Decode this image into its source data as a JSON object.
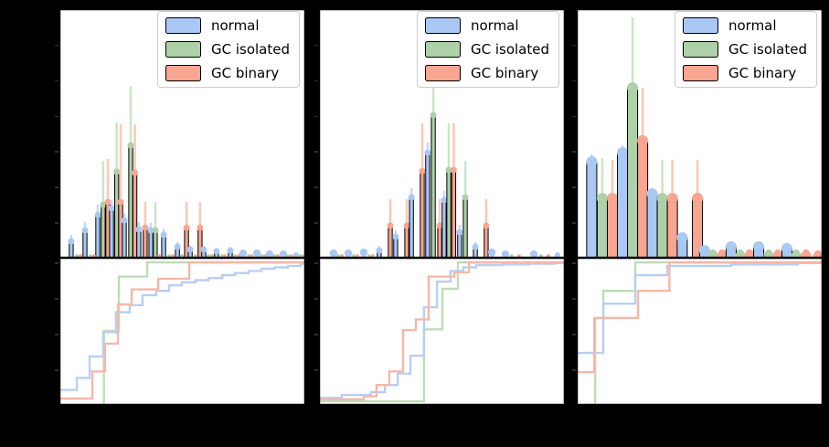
{
  "figure": {
    "background": "#000000",
    "panel_background": "#ffffff",
    "spine_color": "#000000",
    "tick_color": "#2e2e2e"
  },
  "legend": {
    "labels": [
      "normal",
      "GC isolated",
      "GC binary"
    ],
    "border_color": "#cccccc",
    "background": "#ffffff"
  },
  "series_colors": {
    "bar_fill": [
      "#aac8f4",
      "#aed1a9",
      "#f8a591"
    ],
    "error_bar": [
      "#c6daf8",
      "#cde6c9",
      "#fbc9ba"
    ],
    "cdf_line": [
      "#b7cff4",
      "#bedcb8",
      "#f8b7a6"
    ],
    "bar_edge": "#000000"
  },
  "chart_data": [
    {
      "id": "panel-left",
      "type": "bar",
      "description": "grouped histogram with error bars (top) and empirical CDF step curves (bottom); series order: normal, GC isolated, GC binary; all values are fractions of axis ranges (no tick labels visible in image)",
      "histogram": {
        "bar_width_frac": 0.016,
        "bar_format": [
          "series_index",
          "x_frac",
          "height_frac",
          "err_top_frac"
        ],
        "bars": [
          [
            0,
            0.048,
            0.066,
            0.088
          ],
          [
            0,
            0.104,
            0.11,
            0.14
          ],
          [
            0,
            0.156,
            0.173,
            0.21
          ],
          [
            1,
            0.178,
            0.213,
            0.386
          ],
          [
            2,
            0.197,
            0.224,
            0.393
          ],
          [
            0,
            0.212,
            0.199,
            0.228
          ],
          [
            1,
            0.233,
            0.346,
            0.54
          ],
          [
            2,
            0.249,
            0.224,
            0.533
          ],
          [
            0,
            0.264,
            0.15,
            0.176
          ],
          [
            1,
            0.29,
            0.452,
            0.688
          ],
          [
            2,
            0.307,
            0.342,
            0.533
          ],
          [
            0,
            0.323,
            0.114,
            0.14
          ],
          [
            2,
            0.349,
            0.121,
            0.221
          ],
          [
            0,
            0.372,
            0.11,
            0.136
          ],
          [
            1,
            0.39,
            0.11,
            0.221
          ],
          [
            0,
            0.424,
            0.092,
            0.114
          ],
          [
            0,
            0.48,
            0.044,
            0.059
          ],
          [
            2,
            0.517,
            0.121,
            0.221
          ],
          [
            0,
            0.532,
            0.033,
            0.044
          ],
          [
            2,
            0.572,
            0.121,
            0.221
          ],
          [
            0,
            0.587,
            0.033,
            0.044
          ],
          [
            0,
            0.639,
            0.026,
            0.033
          ],
          [
            0,
            0.695,
            0.029,
            0.04
          ],
          [
            0,
            0.747,
            0.018,
            0
          ],
          [
            0,
            0.803,
            0.018,
            0
          ],
          [
            0,
            0.855,
            0.015,
            0
          ],
          [
            0,
            0.911,
            0.015,
            0
          ],
          [
            0,
            0.963,
            0.011,
            0
          ],
          [
            1,
            0.071,
            0.007,
            0
          ],
          [
            1,
            0.126,
            0.007,
            0
          ],
          [
            1,
            0.446,
            0.007,
            0
          ],
          [
            1,
            0.498,
            0.007,
            0
          ],
          [
            1,
            0.554,
            0.007,
            0
          ],
          [
            1,
            0.606,
            0.007,
            0
          ],
          [
            1,
            0.662,
            0.007,
            0
          ],
          [
            1,
            0.714,
            0.007,
            0
          ],
          [
            1,
            0.77,
            0.007,
            0
          ],
          [
            1,
            0.822,
            0.007,
            0
          ],
          [
            1,
            0.874,
            0.007,
            0
          ],
          [
            1,
            0.929,
            0.007,
            0
          ],
          [
            1,
            0.981,
            0.007,
            0
          ],
          [
            2,
            0.086,
            0.007,
            0
          ],
          [
            2,
            0.141,
            0.007,
            0
          ],
          [
            2,
            0.405,
            0.007,
            0
          ],
          [
            2,
            0.461,
            0.007,
            0
          ],
          [
            2,
            0.621,
            0.007,
            0
          ],
          [
            2,
            0.673,
            0.007,
            0
          ],
          [
            2,
            0.729,
            0.007,
            0
          ],
          [
            2,
            0.781,
            0.007,
            0
          ],
          [
            2,
            0.836,
            0.007,
            0
          ],
          [
            2,
            0.888,
            0.007,
            0
          ],
          [
            2,
            0.944,
            0.007,
            0
          ],
          [
            2,
            0.996,
            0.007,
            0
          ]
        ]
      },
      "cdf": {
        "type": "step",
        "series": [
          {
            "name": "normal",
            "points": [
              [
                0,
                0.105
              ],
              [
                0.071,
                0.19
              ],
              [
                0.123,
                0.34
              ],
              [
                0.178,
                0.51
              ],
              [
                0.23,
                0.65
              ],
              [
                0.286,
                0.7
              ],
              [
                0.338,
                0.77
              ],
              [
                0.394,
                0.8
              ],
              [
                0.446,
                0.84
              ],
              [
                0.498,
                0.86
              ],
              [
                0.554,
                0.875
              ],
              [
                0.606,
                0.89
              ],
              [
                0.662,
                0.91
              ],
              [
                0.714,
                0.925
              ],
              [
                0.77,
                0.94
              ],
              [
                0.822,
                0.955
              ],
              [
                0.874,
                0.965
              ],
              [
                0.929,
                0.975
              ],
              [
                0.981,
                0.99
              ],
              [
                1,
                1
              ]
            ]
          },
          {
            "name": "GC isolated",
            "points": [
              [
                0.172,
                0.0
              ],
              [
                0.181,
                0.52
              ],
              [
                0.242,
                0.9
              ],
              [
                0.357,
                1.0
              ],
              [
                1,
                1
              ]
            ]
          },
          {
            "name": "GC binary",
            "points": [
              [
                0,
                0.045
              ],
              [
                0.134,
                0.235
              ],
              [
                0.186,
                0.43
              ],
              [
                0.238,
                0.705
              ],
              [
                0.294,
                0.81
              ],
              [
                0.402,
                0.885
              ],
              [
                0.528,
                1.0
              ],
              [
                1,
                1
              ]
            ]
          }
        ]
      }
    },
    {
      "id": "panel-middle",
      "type": "bar",
      "histogram": {
        "bar_width_frac": 0.016,
        "bar_format": [
          "series_index",
          "x_frac",
          "height_frac",
          "err_top_frac"
        ],
        "bars": [
          [
            0,
            0.059,
            0.018,
            0
          ],
          [
            1,
            0.078,
            0.007,
            0
          ],
          [
            2,
            0.093,
            0.007,
            0
          ],
          [
            0,
            0.119,
            0.018,
            0
          ],
          [
            1,
            0.141,
            0.007,
            0
          ],
          [
            2,
            0.156,
            0.007,
            0
          ],
          [
            0,
            0.182,
            0.022,
            0
          ],
          [
            1,
            0.204,
            0.007,
            0
          ],
          [
            2,
            0.219,
            0.007,
            0
          ],
          [
            0,
            0.245,
            0.029,
            0.044
          ],
          [
            2,
            0.29,
            0.129,
            0.232
          ],
          [
            0,
            0.312,
            0.085,
            0.107
          ],
          [
            2,
            0.357,
            0.129,
            0.232
          ],
          [
            0,
            0.376,
            0.243,
            0.276
          ],
          [
            2,
            0.42,
            0.349,
            0.537
          ],
          [
            0,
            0.442,
            0.423,
            0.46
          ],
          [
            1,
            0.465,
            0.574,
            0.82
          ],
          [
            2,
            0.491,
            0.129,
            0.232
          ],
          [
            0,
            0.509,
            0.232,
            0.265
          ],
          [
            1,
            0.528,
            0.353,
            0.537
          ],
          [
            2,
            0.548,
            0.353,
            0.537
          ],
          [
            0,
            0.572,
            0.103,
            0.129
          ],
          [
            1,
            0.595,
            0.243,
            0.386
          ],
          [
            0,
            0.636,
            0.044,
            0.059
          ],
          [
            2,
            0.68,
            0.129,
            0.232
          ],
          [
            0,
            0.703,
            0.022,
            0
          ],
          [
            0,
            0.758,
            0.015,
            0
          ],
          [
            1,
            0.784,
            0.007,
            0
          ],
          [
            2,
            0.814,
            0.007,
            0
          ],
          [
            0,
            0.874,
            0.015,
            0
          ],
          [
            1,
            0.903,
            0.007,
            0
          ],
          [
            2,
            0.933,
            0.007,
            0
          ],
          [
            0,
            0.97,
            0.011,
            0
          ]
        ]
      },
      "cdf": {
        "type": "step",
        "series": [
          {
            "name": "normal",
            "points": [
              [
                0,
                0.05
              ],
              [
                0.093,
                0.07
              ],
              [
                0.212,
                0.09
              ],
              [
                0.268,
                0.14
              ],
              [
                0.32,
                0.22
              ],
              [
                0.372,
                0.345
              ],
              [
                0.427,
                0.685
              ],
              [
                0.48,
                0.865
              ],
              [
                0.535,
                0.94
              ],
              [
                0.587,
                0.965
              ],
              [
                0.639,
                0.98
              ],
              [
                0.747,
                0.985
              ],
              [
                0.855,
                0.99
              ],
              [
                0.959,
                0.995
              ],
              [
                1,
                1
              ]
            ]
          },
          {
            "name": "GC isolated",
            "points": [
              [
                0,
                0.025
              ],
              [
                0.427,
                0.53
              ],
              [
                0.502,
                0.815
              ],
              [
                0.565,
                1.0
              ],
              [
                1,
                1
              ]
            ]
          },
          {
            "name": "GC binary",
            "points": [
              [
                0,
                0.04
              ],
              [
                0.182,
                0.06
              ],
              [
                0.234,
                0.14
              ],
              [
                0.286,
                0.235
              ],
              [
                0.342,
                0.525
              ],
              [
                0.394,
                0.6
              ],
              [
                0.446,
                0.9
              ],
              [
                0.55,
                0.93
              ],
              [
                0.61,
                1.0
              ],
              [
                1,
                1
              ]
            ]
          }
        ]
      }
    },
    {
      "id": "panel-right",
      "type": "bar",
      "histogram": {
        "bar_width_frac": 0.041,
        "bar_format": [
          "series_index",
          "x_frac",
          "height_frac",
          "err_top_frac"
        ],
        "bars": [
          [
            0,
            0.061,
            0.386,
            0.412
          ],
          [
            1,
            0.104,
            0.239,
            0.397
          ],
          [
            2,
            0.145,
            0.239,
            0.39
          ],
          [
            0,
            0.186,
            0.423,
            0.449
          ],
          [
            1,
            0.227,
            0.684,
            0.963
          ],
          [
            2,
            0.268,
            0.471,
            0.68
          ],
          [
            0,
            0.307,
            0.257,
            0.279
          ],
          [
            1,
            0.348,
            0.239,
            0.39
          ],
          [
            2,
            0.389,
            0.239,
            0.39
          ],
          [
            0,
            0.429,
            0.081,
            0.096
          ],
          [
            2,
            0.491,
            0.239,
            0.39
          ],
          [
            0,
            0.52,
            0.029,
            0
          ],
          [
            1,
            0.554,
            0.018,
            0
          ],
          [
            2,
            0.591,
            0.018,
            0
          ],
          [
            0,
            0.628,
            0.044,
            0
          ],
          [
            1,
            0.665,
            0.018,
            0
          ],
          [
            2,
            0.702,
            0.018,
            0
          ],
          [
            0,
            0.74,
            0.044,
            0
          ],
          [
            1,
            0.781,
            0.018,
            0
          ],
          [
            2,
            0.818,
            0.018,
            0
          ],
          [
            0,
            0.855,
            0.037,
            0
          ],
          [
            1,
            0.892,
            0.018,
            0
          ],
          [
            2,
            0.933,
            0.018,
            0
          ],
          [
            2,
            0.981,
            0.015,
            0
          ]
        ]
      },
      "cdf": {
        "type": "step",
        "series": [
          {
            "name": "normal",
            "points": [
              [
                0,
                0.365
              ],
              [
                0.108,
                0.71
              ],
              [
                0.238,
                0.91
              ],
              [
                0.368,
                0.975
              ],
              [
                0.628,
                0.985
              ],
              [
                0.9,
                0.995
              ],
              [
                1,
                1
              ]
            ]
          },
          {
            "name": "GC isolated",
            "points": [
              [
                0.068,
                0.0
              ],
              [
                0.075,
                0.61
              ],
              [
                0.108,
                0.8
              ],
              [
                0.238,
                1.0
              ],
              [
                1,
                1
              ]
            ]
          },
          {
            "name": "GC binary",
            "points": [
              [
                0,
                0.23
              ],
              [
                0.071,
                0.61
              ],
              [
                0.249,
                0.8
              ],
              [
                0.377,
                1.0
              ],
              [
                1,
                1
              ]
            ]
          }
        ]
      }
    }
  ]
}
